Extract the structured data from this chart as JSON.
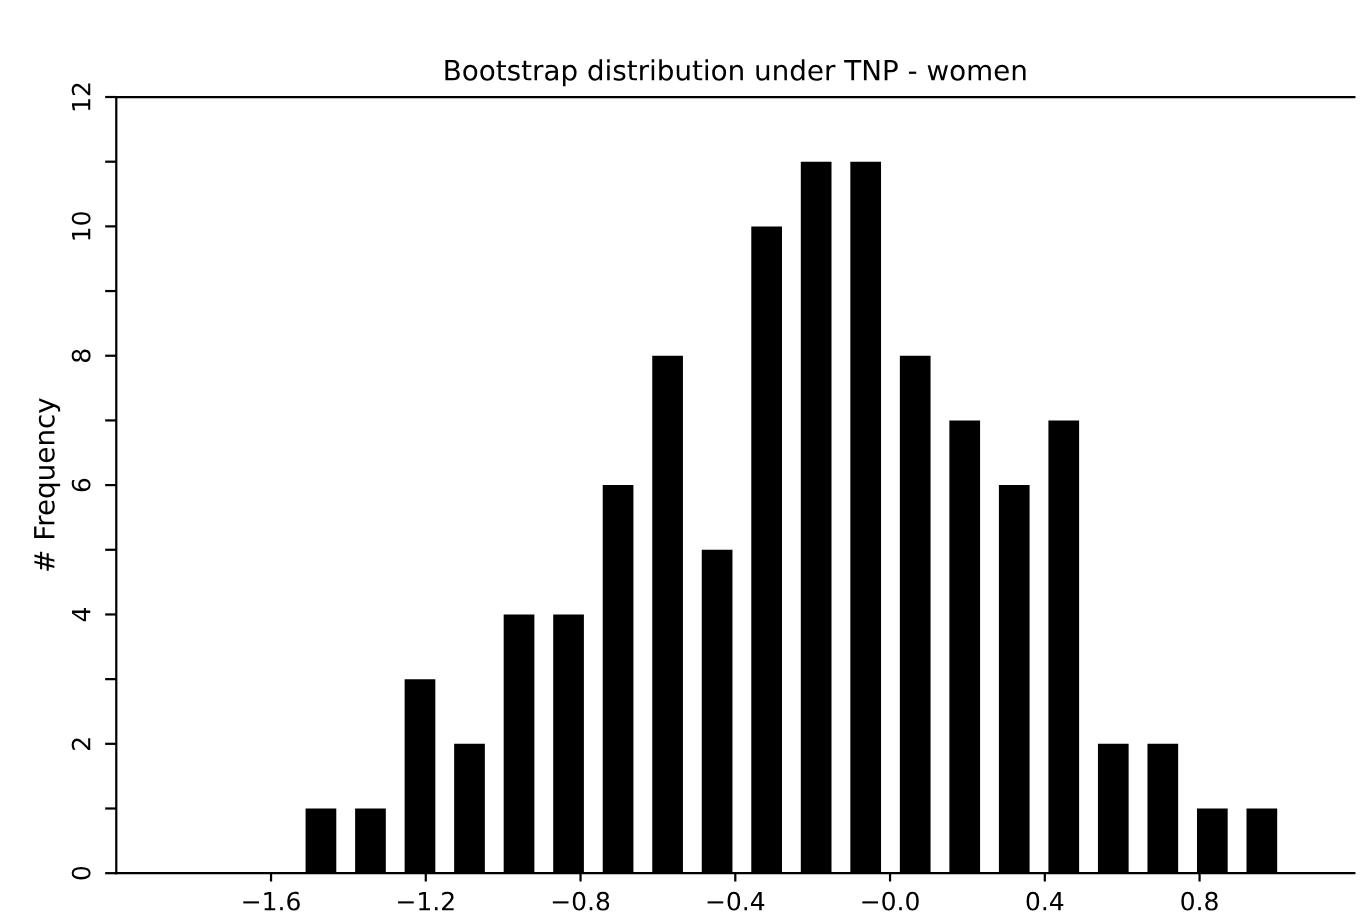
{
  "chart_data": {
    "type": "bar",
    "title": "Bootstrap distribution under TNP - women",
    "ylabel": "# Frequency",
    "x": [
      -1.471,
      -1.343,
      -1.215,
      -1.087,
      -0.959,
      -0.831,
      -0.703,
      -0.575,
      -0.447,
      -0.319,
      -0.191,
      -0.063,
      0.065,
      0.193,
      0.321,
      0.449,
      0.577,
      0.705,
      0.833,
      0.961
    ],
    "values": [
      1,
      1,
      3,
      2,
      4,
      4,
      6,
      8,
      5,
      10,
      11,
      11,
      8,
      7,
      6,
      7,
      2,
      2,
      1,
      1
    ],
    "color": "#000000",
    "xlim": [
      -2.0,
      1.2
    ],
    "xticks": [
      {
        "value": -1.6,
        "label": "−1.6"
      },
      {
        "value": -1.2,
        "label": "−1.2"
      },
      {
        "value": -0.8,
        "label": "−0.8"
      },
      {
        "value": -0.4,
        "label": "−0.4"
      },
      {
        "value": 0,
        "label": "−0.0"
      },
      {
        "value": 0.4,
        "label": "0.4"
      },
      {
        "value": 0.8,
        "label": "0.8"
      }
    ],
    "ylim": [
      0,
      12
    ],
    "yticks": [
      0,
      {
        "value": 1,
        "label": null
      },
      2,
      {
        "value": 3,
        "label": null
      },
      4,
      {
        "value": 5,
        "label": null
      },
      6,
      {
        "value": 7,
        "label": null
      },
      8,
      {
        "value": 9,
        "label": null
      },
      10,
      {
        "value": 11,
        "label": null
      },
      12
    ],
    "grid": false
  }
}
